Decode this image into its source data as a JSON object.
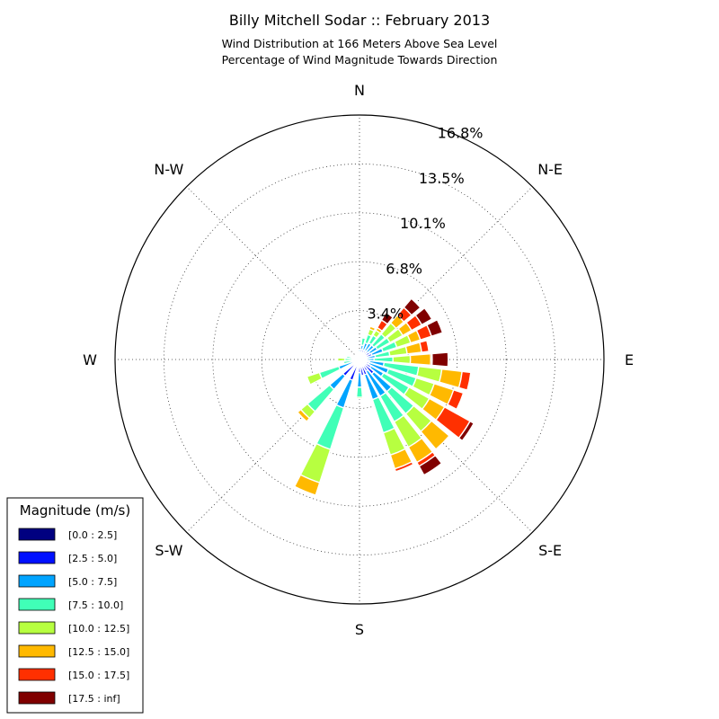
{
  "chart_data": {
    "type": "windrose",
    "title": "Billy Mitchell Sodar :: February 2013",
    "subtitle_lines": [
      "Wind Distribution at 166 Meters Above Sea Level",
      "Percentage of Wind Magnitude Towards Direction"
    ],
    "directions": [
      "N",
      "N-E",
      "E",
      "S-E",
      "S",
      "S-W",
      "W",
      "N-W"
    ],
    "ring_labels": [
      "3.4%",
      "6.8%",
      "10.1%",
      "13.5%",
      "16.8%"
    ],
    "rmax": 16.8,
    "grid": true,
    "legend": {
      "title": "Magnitude (m/s)",
      "placement": "bottom-left",
      "bins": [
        {
          "label": "[0.0 : 2.5]",
          "color": "#000080"
        },
        {
          "label": "[2.5 : 5.0]",
          "color": "#0010ff"
        },
        {
          "label": "[5.0 : 7.5]",
          "color": "#00a4ff"
        },
        {
          "label": "[7.5 : 10.0]",
          "color": "#40ffb7"
        },
        {
          "label": "[10.0 : 12.5]",
          "color": "#b7ff40"
        },
        {
          "label": "[12.5 : 15.0]",
          "color": "#ffb900"
        },
        {
          "label": "[15.0 : 17.5]",
          "color": "#ff3000"
        },
        {
          "label": "[17.5 : inf]",
          "color": "#800000"
        }
      ]
    },
    "sectors": [
      {
        "angle": 0,
        "values": [
          0.1,
          0.3,
          0.3,
          0.0,
          0.0,
          0.0,
          0.0,
          0.0
        ]
      },
      {
        "angle": 11.25,
        "values": [
          0.1,
          0.6,
          0.3,
          0.5,
          0.0,
          0.0,
          0.0,
          0.0
        ]
      },
      {
        "angle": 22.5,
        "values": [
          0.1,
          0.6,
          0.5,
          0.6,
          0.4,
          0.2,
          0.0,
          0.0
        ]
      },
      {
        "angle": 33.75,
        "values": [
          0.1,
          0.6,
          0.6,
          0.6,
          0.4,
          0.2,
          0.6,
          0.6
        ]
      },
      {
        "angle": 45,
        "values": [
          0.1,
          0.6,
          0.6,
          1.0,
          1.0,
          0.7,
          0.7,
          0.8
        ]
      },
      {
        "angle": 56.25,
        "values": [
          0.1,
          0.7,
          0.6,
          1.0,
          1.0,
          0.7,
          0.8,
          0.8
        ]
      },
      {
        "angle": 67.5,
        "values": [
          0.1,
          0.8,
          0.8,
          1.0,
          1.0,
          0.7,
          0.8,
          0.8
        ]
      },
      {
        "angle": 78.75,
        "values": [
          0.1,
          0.4,
          0.6,
          1.0,
          1.2,
          1.0,
          0.5,
          0.0
        ]
      },
      {
        "angle": 90,
        "values": [
          0.1,
          0.4,
          0.5,
          1.3,
          1.2,
          1.4,
          0.1,
          1.1
        ]
      },
      {
        "angle": 101.25,
        "values": [
          0.1,
          0.6,
          1.0,
          2.4,
          1.6,
          1.4,
          0.6,
          0.0
        ]
      },
      {
        "angle": 112.5,
        "values": [
          0.1,
          0.6,
          1.4,
          2.0,
          1.3,
          1.4,
          0.7,
          0.0
        ]
      },
      {
        "angle": 123.75,
        "values": [
          0.1,
          0.8,
          1.0,
          2.0,
          1.6,
          1.2,
          2.0,
          0.3
        ]
      },
      {
        "angle": 135,
        "values": [
          0.1,
          1.2,
          1.6,
          2.0,
          1.6,
          1.6,
          0.0,
          0.0
        ]
      },
      {
        "angle": 146.25,
        "values": [
          0.1,
          0.8,
          2.0,
          2.0,
          2.0,
          1.2,
          0.3,
          0.7
        ]
      },
      {
        "angle": 157.5,
        "values": [
          0.1,
          1.0,
          1.8,
          2.4,
          1.6,
          1.0,
          0.2,
          0.0
        ]
      },
      {
        "angle": 168.75,
        "values": [
          0.1,
          1.0,
          0.0,
          0.0,
          0.0,
          0.0,
          0.0,
          0.0
        ]
      },
      {
        "angle": 180,
        "values": [
          0.1,
          0.8,
          1.0,
          0.7,
          0.1,
          0.0,
          0.0,
          0.0
        ]
      },
      {
        "angle": 191.25,
        "values": [
          0.1,
          0.5,
          0.0,
          0.0,
          0.0,
          0.0,
          0.0,
          0.0
        ]
      },
      {
        "angle": 202.5,
        "values": [
          0.1,
          1.4,
          2.0,
          3.0,
          2.4,
          0.9,
          0.0,
          0.0
        ]
      },
      {
        "angle": 213.75,
        "values": [
          0.1,
          0.5,
          0.0,
          0.0,
          0.0,
          0.0,
          0.0,
          0.0
        ]
      },
      {
        "angle": 225,
        "values": [
          0.1,
          1.4,
          1.2,
          2.0,
          0.6,
          0.3,
          0.0,
          0.0
        ]
      },
      {
        "angle": 236.25,
        "values": [
          0.1,
          0.5,
          0.0,
          0.0,
          0.0,
          0.0,
          0.0,
          0.0
        ]
      },
      {
        "angle": 247.5,
        "values": [
          0.1,
          0.4,
          1.0,
          1.4,
          0.9,
          0.0,
          0.0,
          0.0
        ]
      },
      {
        "angle": 258.75,
        "values": [
          0.1,
          0.2,
          0.3,
          0.5,
          0.0,
          0.0,
          0.0,
          0.0
        ]
      },
      {
        "angle": 270,
        "values": [
          0.1,
          0.2,
          0.2,
          0.5,
          0.5,
          0.0,
          0.0,
          0.0
        ]
      },
      {
        "angle": 281.25,
        "values": [
          0.1,
          0.2,
          0.2,
          0.4,
          0.0,
          0.0,
          0.0,
          0.0
        ]
      },
      {
        "angle": 292.5,
        "values": [
          0.1,
          0.2,
          0.0,
          0.0,
          0.0,
          0.0,
          0.0,
          0.0
        ]
      },
      {
        "angle": 303.75,
        "values": [
          0.1,
          0.2,
          0.0,
          0.0,
          0.0,
          0.0,
          0.0,
          0.0
        ]
      },
      {
        "angle": 315,
        "values": [
          0.1,
          0.2,
          0.0,
          0.0,
          0.0,
          0.0,
          0.0,
          0.0
        ]
      },
      {
        "angle": 326.25,
        "values": [
          0.1,
          0.2,
          0.0,
          0.0,
          0.0,
          0.0,
          0.0,
          0.0
        ]
      },
      {
        "angle": 337.5,
        "values": [
          0.1,
          0.2,
          0.0,
          0.0,
          0.0,
          0.0,
          0.0,
          0.0
        ]
      },
      {
        "angle": 348.75,
        "values": [
          0.1,
          0.2,
          0.0,
          0.0,
          0.0,
          0.0,
          0.0,
          0.0
        ]
      }
    ]
  }
}
